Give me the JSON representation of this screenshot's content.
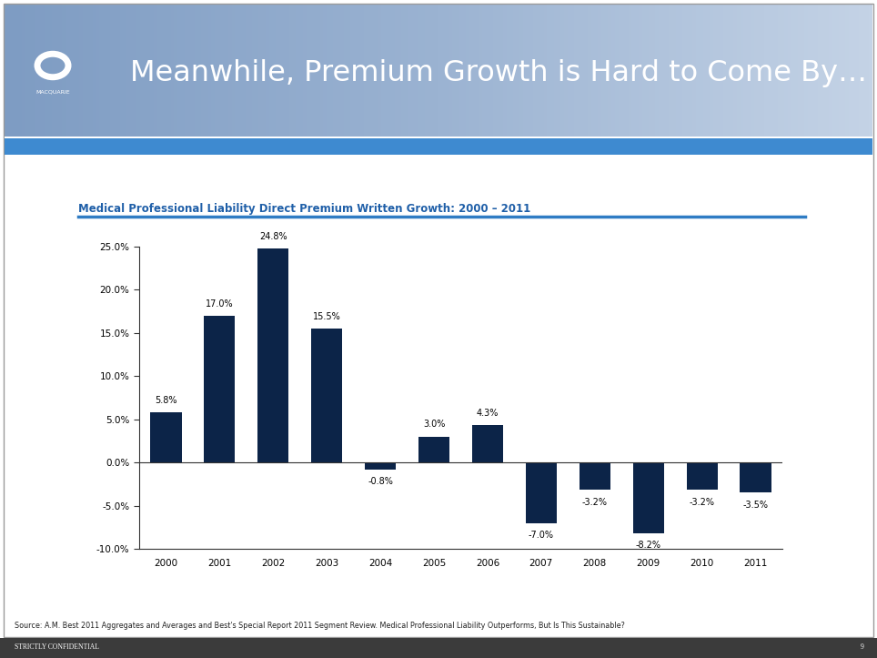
{
  "slide": {
    "title": "Meanwhile, Premium Growth is Hard to Come By…",
    "logo": "MACQUARIE",
    "source": "Source: A.M. Best 2011 Aggregates and Averages and Best's Special Report 2011 Segment Review. Medical Professional Liability Outperforms, But Is This Sustainable?",
    "footer": "STRICTLY CONFIDENTIAL",
    "page": "9"
  },
  "chart_data": {
    "type": "bar",
    "title": "Medical Professional Liability Direct Premium Written Growth: 2000 – 2011",
    "categories": [
      "2000",
      "2001",
      "2002",
      "2003",
      "2004",
      "2005",
      "2006",
      "2007",
      "2008",
      "2009",
      "2010",
      "2011"
    ],
    "values": [
      5.8,
      17.0,
      24.8,
      15.5,
      -0.8,
      3.0,
      4.3,
      -7.0,
      -3.2,
      -8.2,
      -3.2,
      -3.5
    ],
    "value_labels": [
      "5.8%",
      "17.0%",
      "24.8%",
      "15.5%",
      "-0.8%",
      "3.0%",
      "4.3%",
      "-7.0%",
      "-3.2%",
      "-8.2%",
      "-3.2%",
      "-3.5%"
    ],
    "color": "#0c2448",
    "ylim": [
      -10,
      25
    ],
    "yticks": [
      {
        "value": -10,
        "label": "-10.0%"
      },
      {
        "value": -5,
        "label": "-5.0%"
      },
      {
        "value": 0,
        "label": "0.0%"
      },
      {
        "value": 5,
        "label": "5.0%"
      },
      {
        "value": 10,
        "label": "10.0%"
      },
      {
        "value": 15,
        "label": "15.0%"
      },
      {
        "value": 20,
        "label": "20.0%"
      },
      {
        "value": 25,
        "label": "25.0%"
      }
    ],
    "grid": false,
    "data_labels": true
  }
}
